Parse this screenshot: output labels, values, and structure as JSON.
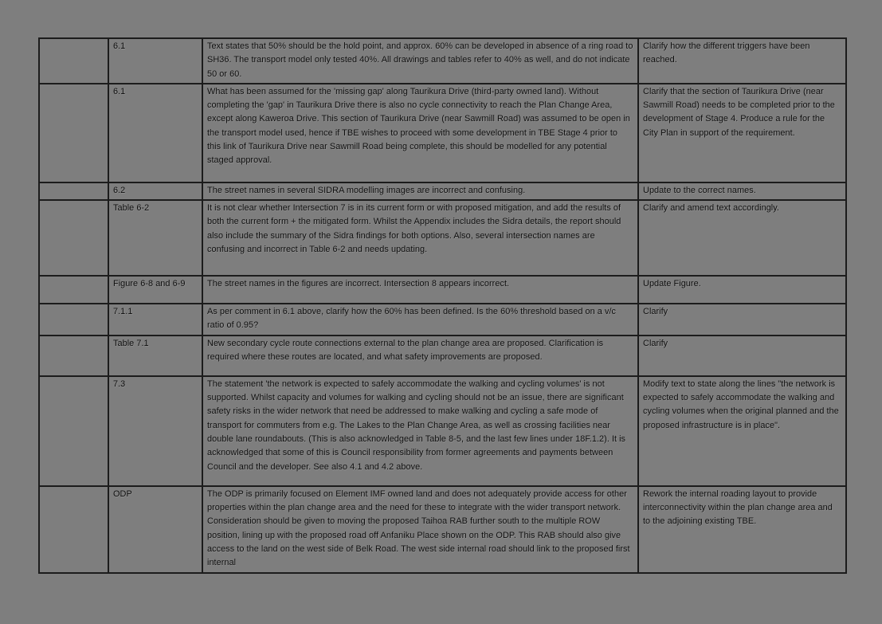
{
  "page": {
    "background_color": "#7e7e7e",
    "table_border_color": "#1c1c1c",
    "text_color": "#0d0d0d"
  },
  "table": {
    "rows": [
      {
        "ref": "6.1",
        "comment": "Text states that 50% should be the hold point, and approx. 60% can be developed in absence of a ring road to SH36. The transport model only tested 40%. All drawings and tables refer to 40% as well, and do not indicate 50 or 60.",
        "action": "Clarify how the different triggers have been reached."
      },
      {
        "ref": "6.1",
        "comment": "What has been assumed for the 'missing gap' along Taurikura Drive (third-party owned land). Without completing the 'gap' in Taurikura Drive there is also no cycle connectivity to reach the Plan Change Area, except along Kaweroa Drive. This section of Taurikura Drive (near Sawmill Road) was assumed to be open in the transport model used, hence if TBE wishes to proceed with some development in TBE Stage 4 prior to this link of Taurikura Drive near Sawmill Road being complete, this should be modelled for any potential staged approval.",
        "action": "Clarify that the section of Taurikura Drive (near Sawmill Road) needs to be completed prior to the development of Stage 4. Produce a rule for the City Plan in support of the requirement."
      },
      {
        "ref": "6.2",
        "comment": "The street names in several SIDRA modelling images are incorrect and confusing.",
        "action": "Update to the correct names."
      },
      {
        "ref": "Table 6-2",
        "comment": "It is not clear whether Intersection 7 is in its current form or with proposed mitigation, and add the results of both the current form + the mitigated form. Whilst the Appendix includes the Sidra details, the report should also include the summary of the Sidra findings for both options. Also, several intersection names are confusing and incorrect in Table 6-2 and needs updating.",
        "action": "Clarify and amend text accordingly."
      },
      {
        "ref": "Figure 6-8 and 6-9",
        "comment": "The street names in the figures are incorrect. Intersection 8 appears incorrect.",
        "action": "Update Figure."
      },
      {
        "ref": "7.1.1",
        "comment": "As per comment in 6.1 above, clarify how the 60% has been defined. Is the 60% threshold based on a v/c ratio of 0.95?",
        "action": "Clarify"
      },
      {
        "ref": "Table 7.1",
        "comment": "New secondary cycle route connections external to the plan change area are proposed. Clarification is required where these routes are located, and what safety improvements are proposed.",
        "action": "Clarify"
      },
      {
        "ref": "7.3",
        "comment": "The statement 'the network is expected to safely accommodate the walking and cycling volumes' is not supported. Whilst capacity and volumes for walking and cycling should not be an issue, there are significant safety risks in the wider network that need be addressed to make walking and cycling a safe mode of transport for commuters from e.g. The Lakes to the Plan Change Area, as well as crossing facilities near double lane roundabouts. (This is also acknowledged in Table 8-5, and the last few lines under 18F.1.2). It is acknowledged that some of this is Council responsibility from former agreements and payments between Council and the developer. See also 4.1 and 4.2 above.",
        "action": "Modify text to state along the lines \"the network is expected to safely accommodate the walking and cycling volumes when the original planned and the proposed infrastructure is in place\"."
      },
      {
        "ref": "ODP",
        "comment": "The ODP is primarily focused on Element IMF owned land and does not adequately provide access for other properties within the plan change area and the need for these to integrate with the wider transport network. Consideration should be given to moving the proposed Taihoa RAB further south to the multiple ROW position, lining up with the proposed road off Anfaniku Place shown on the ODP. This RAB should also give access to the land on the west side of Belk Road. The west side internal road should link to the proposed first internal",
        "action": "Rework the internal roading layout to provide interconnectivity within the plan change area and to the adjoining existing TBE."
      }
    ]
  }
}
